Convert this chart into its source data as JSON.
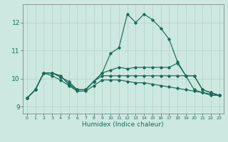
{
  "xlabel": "Humidex (Indice chaleur)",
  "xlim": [
    -0.5,
    23.5
  ],
  "ylim": [
    8.75,
    12.65
  ],
  "xticks": [
    0,
    1,
    2,
    3,
    4,
    5,
    6,
    7,
    8,
    9,
    10,
    11,
    12,
    13,
    14,
    15,
    16,
    17,
    18,
    19,
    20,
    21,
    22,
    23
  ],
  "yticks": [
    9,
    10,
    11,
    12
  ],
  "bg_color": "#cde8e0",
  "line_color": "#1a6b5a",
  "grid_color": "#aed4c8",
  "series": [
    [
      9.3,
      9.6,
      10.2,
      10.2,
      10.1,
      9.8,
      9.6,
      9.6,
      9.9,
      10.2,
      10.9,
      11.1,
      12.3,
      12.0,
      12.3,
      12.1,
      11.8,
      11.4,
      10.6,
      10.1,
      9.6,
      9.5,
      9.4,
      9.4
    ],
    [
      9.3,
      9.6,
      10.2,
      10.2,
      10.1,
      9.8,
      9.6,
      9.6,
      9.9,
      10.2,
      10.3,
      10.4,
      10.35,
      10.4,
      10.4,
      10.4,
      10.4,
      10.4,
      10.55,
      10.1,
      10.1,
      9.6,
      9.5,
      9.4
    ],
    [
      9.3,
      9.6,
      10.2,
      10.2,
      10.05,
      9.9,
      9.6,
      9.6,
      9.9,
      10.1,
      10.1,
      10.1,
      10.1,
      10.1,
      10.1,
      10.1,
      10.1,
      10.1,
      10.1,
      10.1,
      10.1,
      9.6,
      9.5,
      9.4
    ],
    [
      9.3,
      9.6,
      10.2,
      10.1,
      9.95,
      9.75,
      9.55,
      9.55,
      9.75,
      9.95,
      9.95,
      9.95,
      9.9,
      9.85,
      9.85,
      9.8,
      9.75,
      9.7,
      9.65,
      9.6,
      9.55,
      9.5,
      9.45,
      9.4
    ]
  ]
}
